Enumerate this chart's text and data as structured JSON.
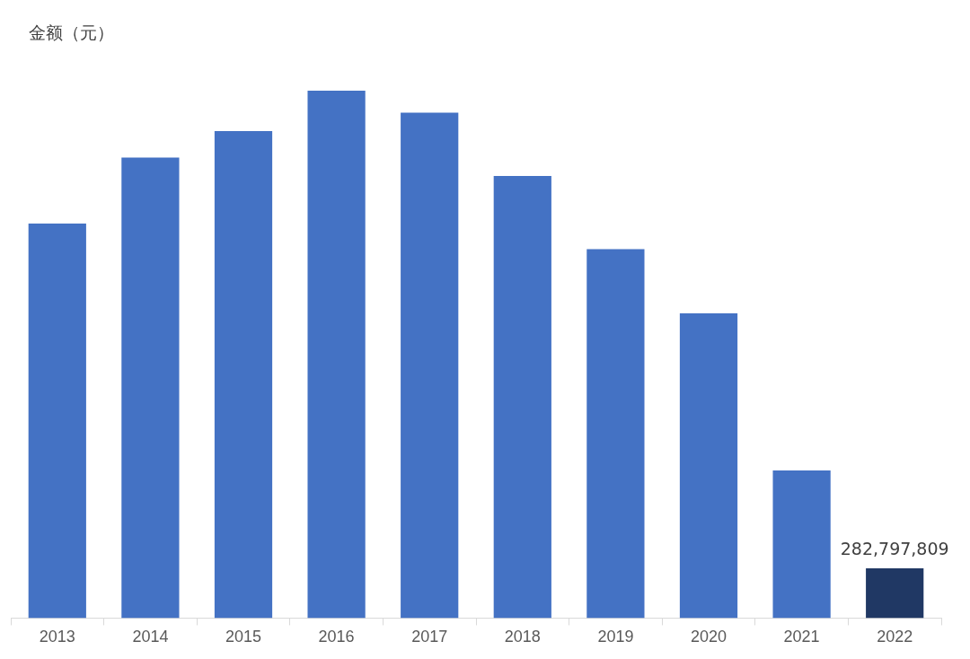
{
  "chart_data": {
    "type": "bar",
    "ylabel": "金额（元）",
    "categories": [
      "2013",
      "2014",
      "2015",
      "2016",
      "2017",
      "2018",
      "2019",
      "2020",
      "2021",
      "2022"
    ],
    "values": [
      2240000000,
      2615000000,
      2765000000,
      2995000000,
      2870000000,
      2510000000,
      2095000000,
      1730000000,
      838000000,
      282797809
    ],
    "colors": [
      "#4472c4",
      "#4472c4",
      "#4472c4",
      "#4472c4",
      "#4472c4",
      "#4472c4",
      "#4472c4",
      "#4472c4",
      "#4472c4",
      "#203864"
    ],
    "value_labels": [
      null,
      null,
      null,
      null,
      null,
      null,
      null,
      null,
      null,
      "282,797,809"
    ],
    "grid": false,
    "legend": false
  }
}
